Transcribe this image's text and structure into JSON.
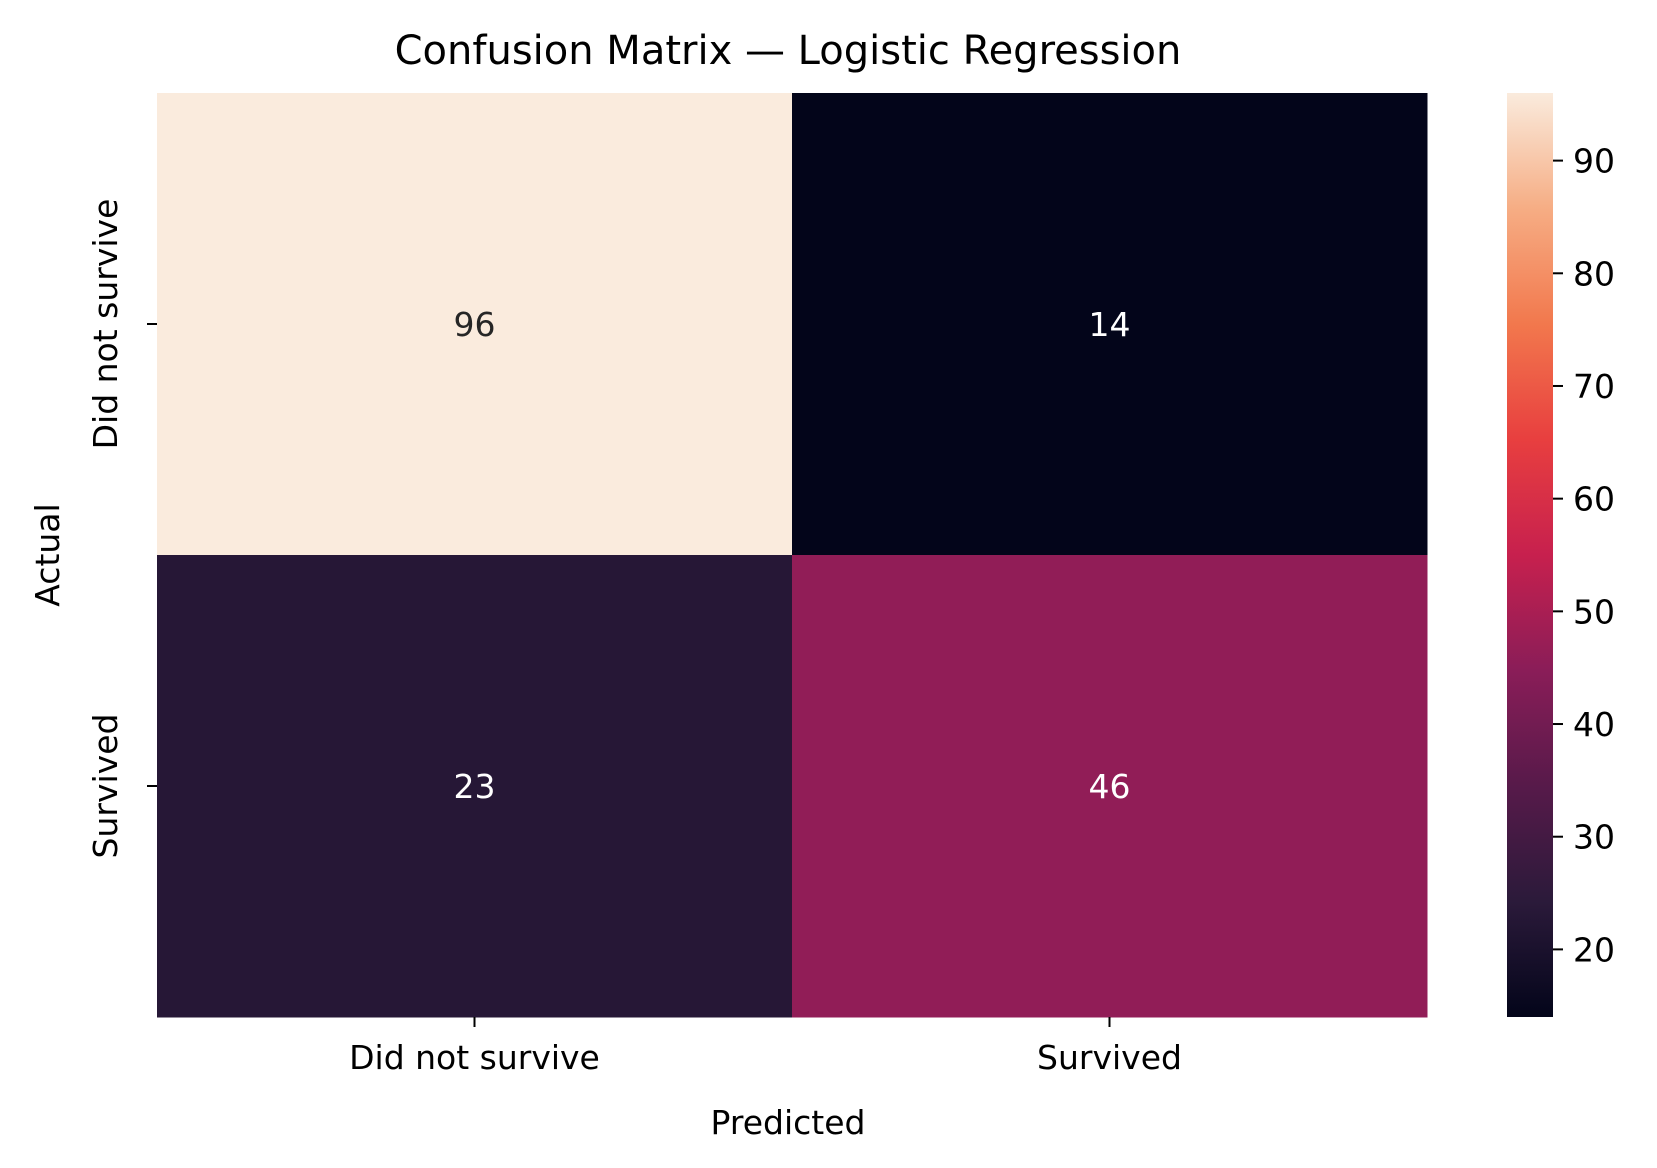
{
  "chart_data": {
    "type": "heatmap",
    "title": "Confusion Matrix — Logistic Regression",
    "xlabel": "Predicted",
    "ylabel": "Actual",
    "x_categories": [
      "Did not survive",
      "Survived"
    ],
    "y_categories": [
      "Did not survive",
      "Survived"
    ],
    "values": [
      [
        96,
        14
      ],
      [
        23,
        46
      ]
    ],
    "colorbar": {
      "range": [
        14,
        96
      ],
      "ticks": [
        20,
        30,
        40,
        50,
        60,
        70,
        80,
        90
      ],
      "colormap": "rocket",
      "stops": [
        "#03051a",
        "#2b1a3a",
        "#571a4a",
        "#8a1d58",
        "#c7204e",
        "#e83f3f",
        "#f2784d",
        "#f6ad84",
        "#faebdd"
      ]
    },
    "grid": false
  }
}
